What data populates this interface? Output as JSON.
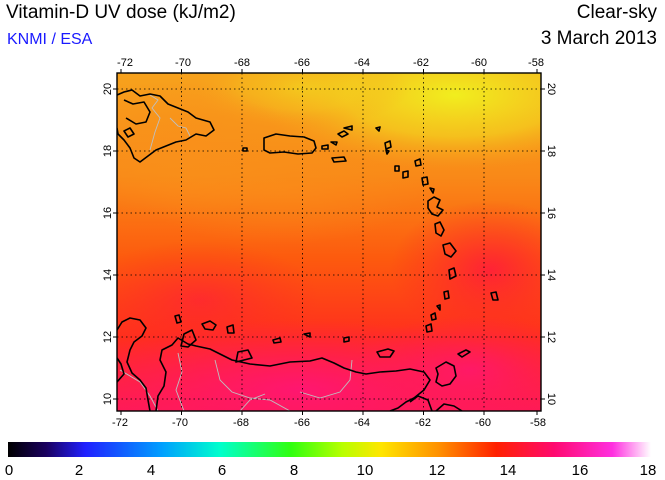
{
  "header": {
    "title": "Vitamin-D UV dose (kJ/m2)",
    "credit": "KNMI / ESA",
    "sky_condition": "Clear-sky",
    "date": "3 March 2013"
  },
  "map": {
    "lon_ticks": [
      "-72",
      "-70",
      "-68",
      "-66",
      "-64",
      "-62",
      "-60",
      "-58"
    ],
    "lat_ticks": [
      "10",
      "12",
      "14",
      "16",
      "18",
      "20"
    ],
    "lon_range": [
      -72,
      -58
    ],
    "lat_range": [
      9.6,
      20.4
    ]
  },
  "colorbar": {
    "ticks": [
      "0",
      "2",
      "4",
      "6",
      "8",
      "10",
      "12",
      "14",
      "16",
      "18"
    ],
    "range": [
      0,
      18
    ]
  },
  "colors": {
    "credit_text": "#1a1aff",
    "field_yellow": "#f2e21e",
    "field_orange": "#f7a01a",
    "field_red": "#ff3300",
    "field_magenta": "#ff1b5e"
  }
}
